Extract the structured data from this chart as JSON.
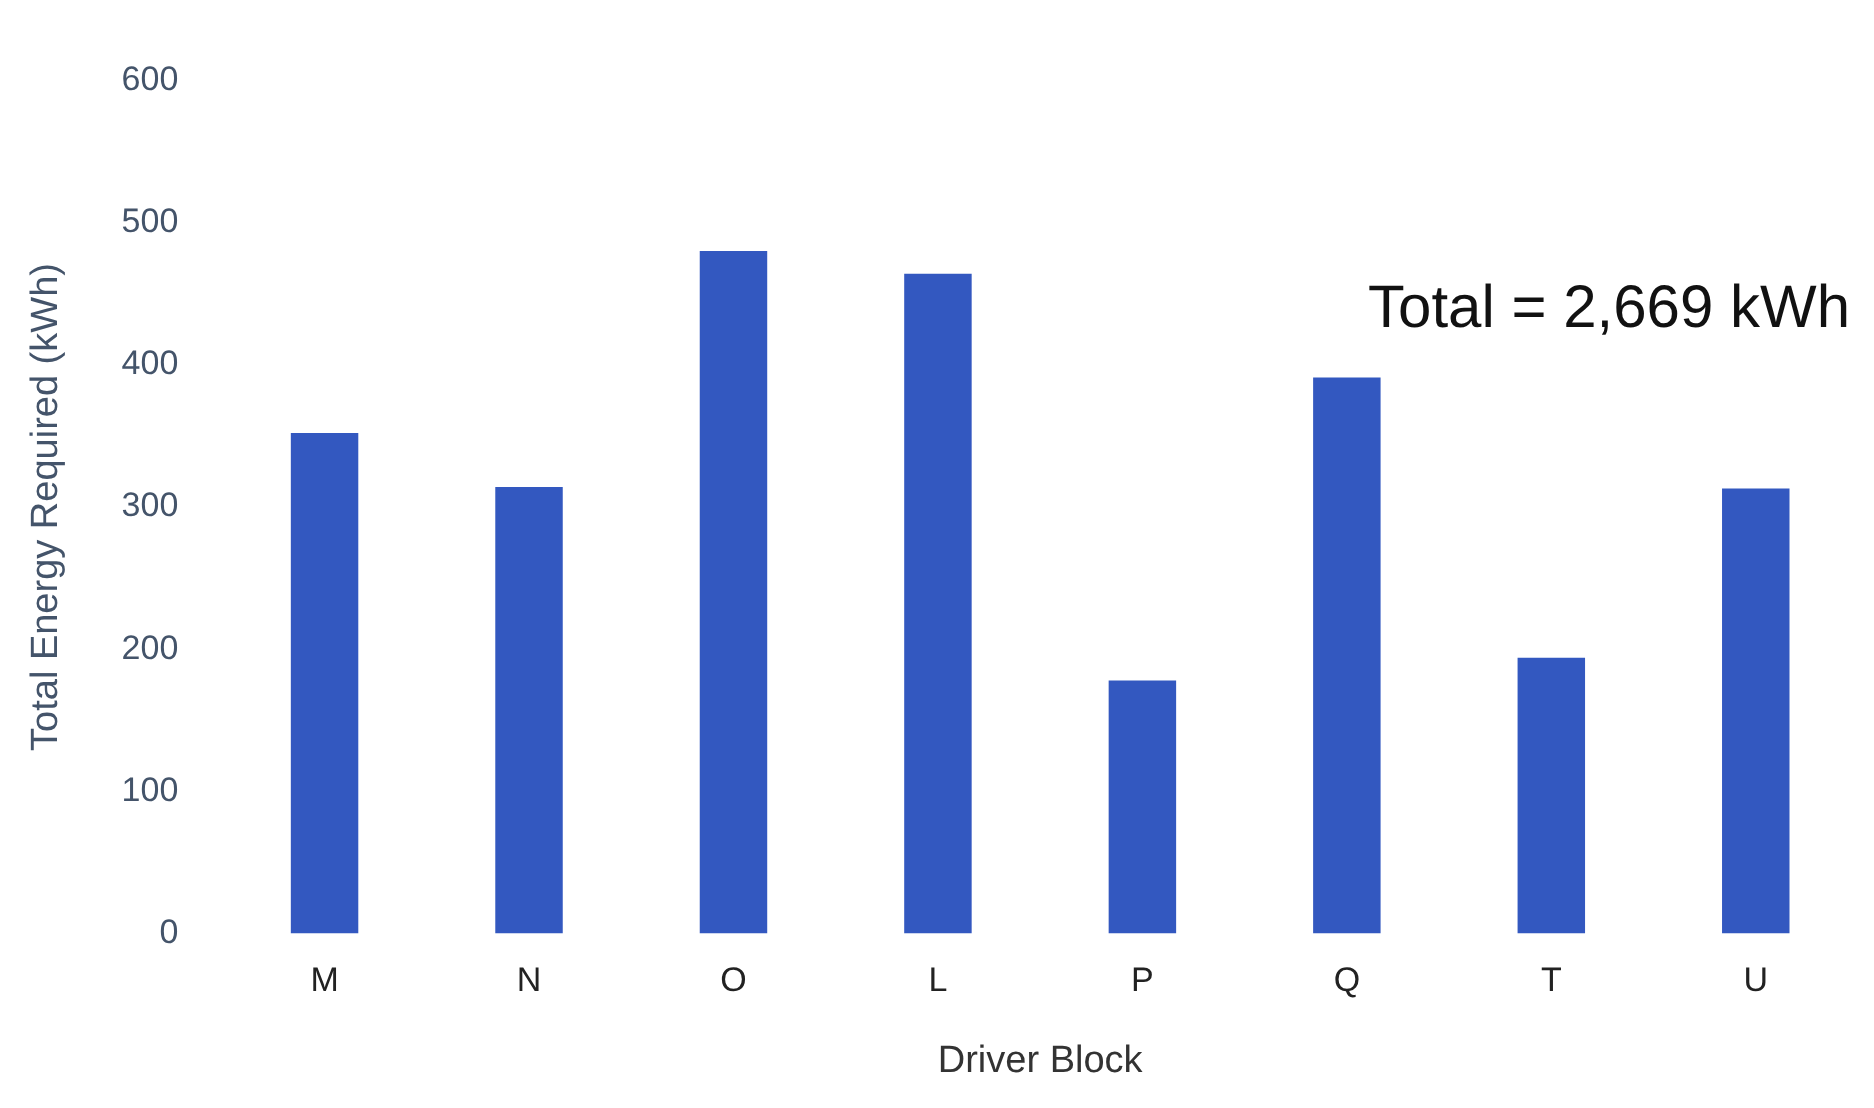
{
  "chart_data": {
    "type": "bar",
    "xlabel": "Driver Block",
    "ylabel": "Total Energy Required (kWh)",
    "categories": [
      "M",
      "N",
      "O",
      "L",
      "P",
      "Q",
      "T",
      "U"
    ],
    "values": [
      352,
      314,
      480,
      464,
      178,
      391,
      194,
      313
    ],
    "color": "#3358c0",
    "ylim": [
      0,
      600
    ],
    "yticks": [
      0,
      100,
      200,
      300,
      400,
      500,
      600
    ],
    "grid": false,
    "legend": false,
    "annotations": [
      "Total = 2,669 kWh"
    ]
  }
}
